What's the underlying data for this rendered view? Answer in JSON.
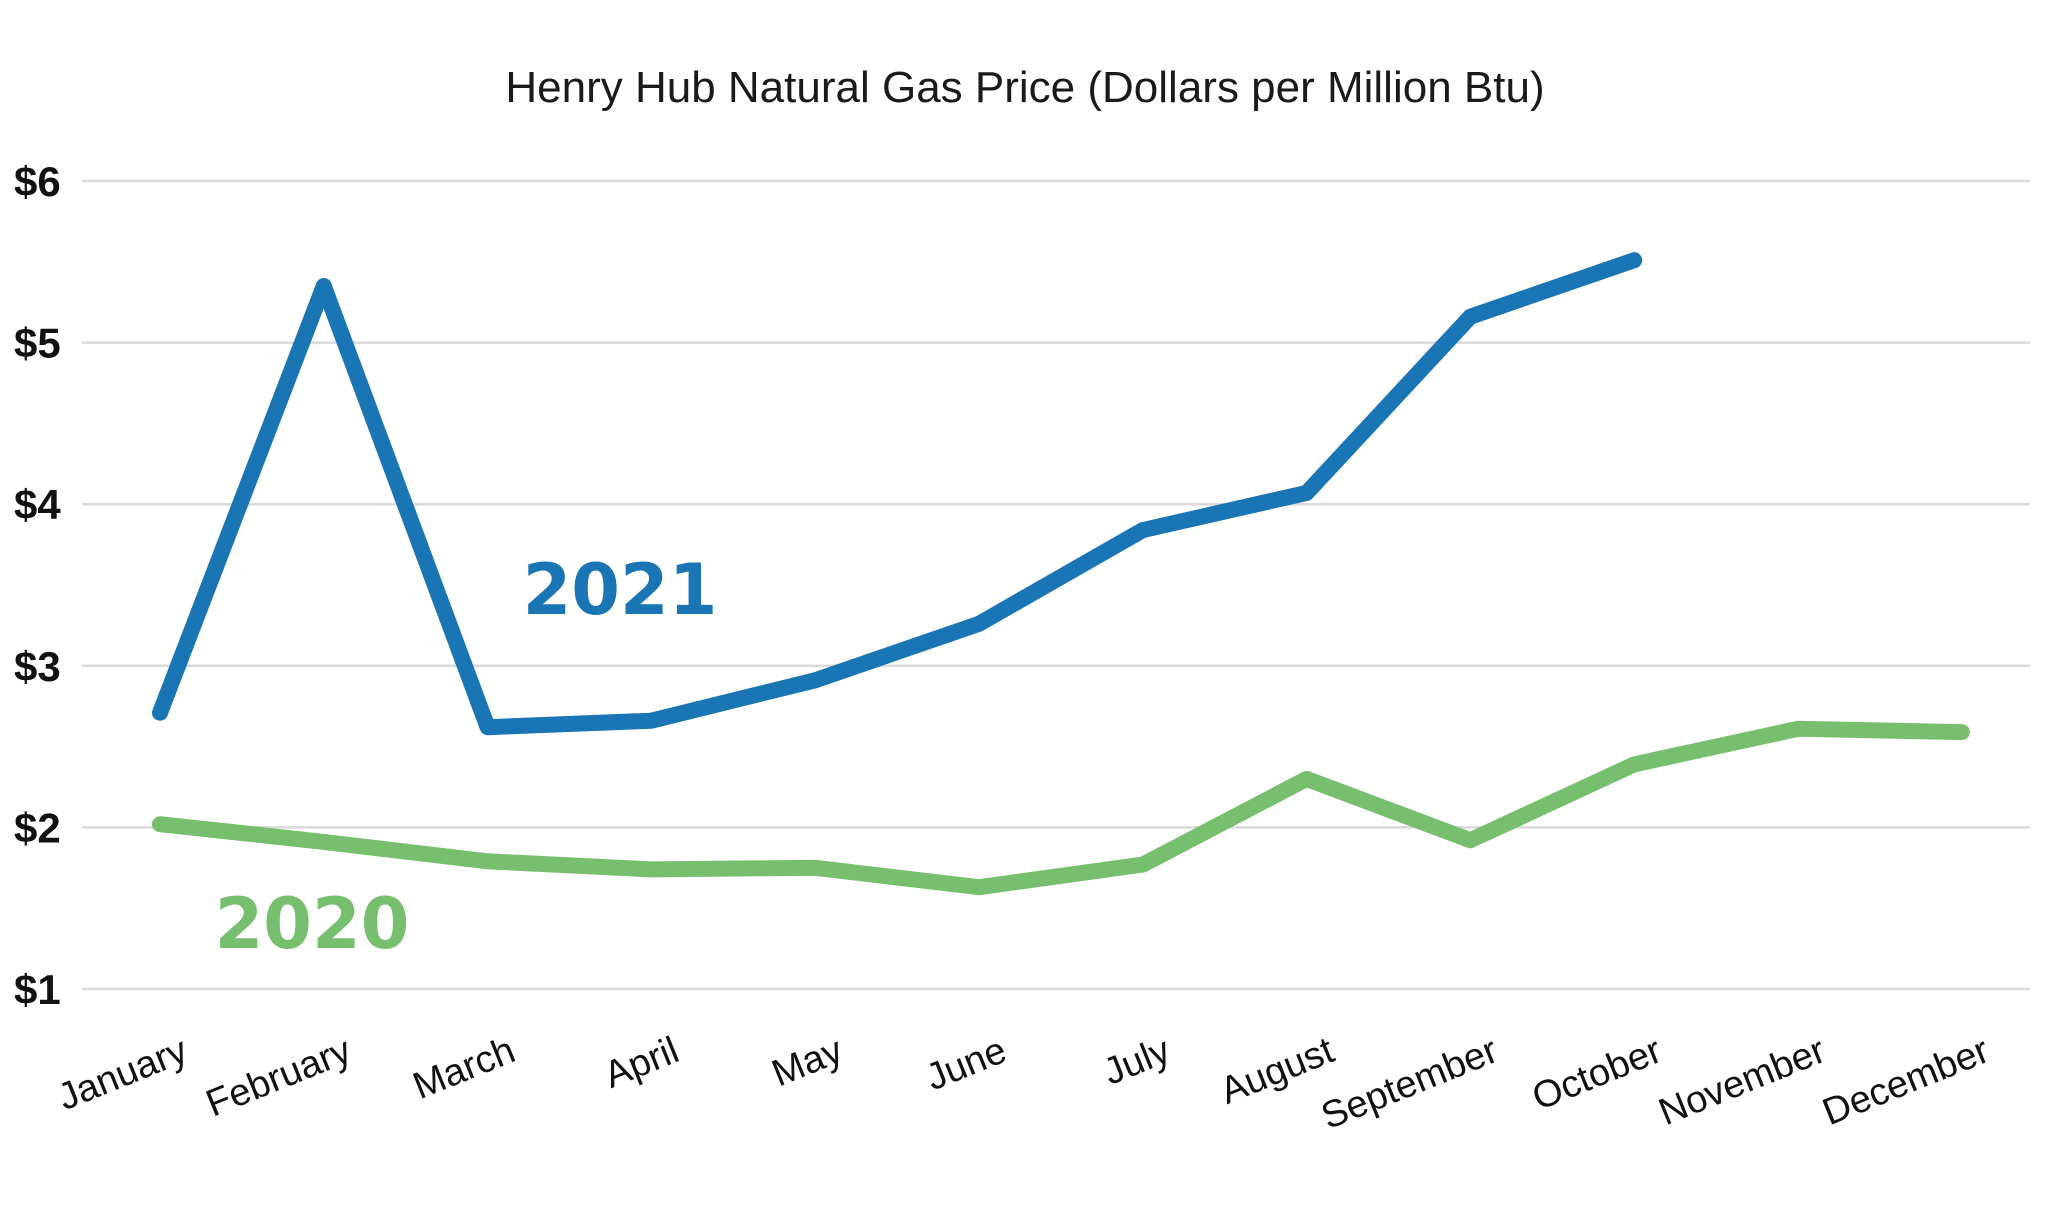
{
  "chart_data": {
    "type": "line",
    "title": "Henry Hub Natural Gas Price (Dollars per Million Btu)",
    "xlabel": "",
    "ylabel": "",
    "categories": [
      "January",
      "February",
      "March",
      "April",
      "May",
      "June",
      "July",
      "August",
      "September",
      "October",
      "November",
      "December"
    ],
    "y_ticks": [
      "$1",
      "$2",
      "$3",
      "$4",
      "$5",
      "$6"
    ],
    "y_tick_values": [
      1,
      2,
      3,
      4,
      5,
      6
    ],
    "ylim": [
      1,
      6
    ],
    "grid": true,
    "legend": "inline labels",
    "series": [
      {
        "name": "2021",
        "color": "#1a75b5",
        "values": [
          2.71,
          5.35,
          2.62,
          2.66,
          2.91,
          3.26,
          3.84,
          4.07,
          5.16,
          5.51,
          null,
          null
        ]
      },
      {
        "name": "2020",
        "color": "#77bf6e",
        "values": [
          2.02,
          1.91,
          1.79,
          1.74,
          1.75,
          1.63,
          1.77,
          2.3,
          1.92,
          2.39,
          2.61,
          2.59
        ]
      }
    ]
  }
}
